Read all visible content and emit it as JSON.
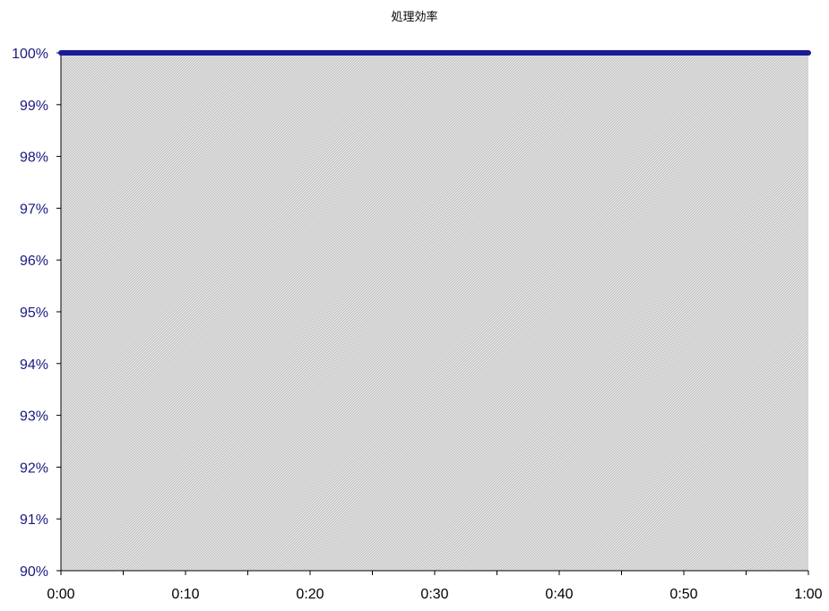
{
  "chart_data": {
    "type": "line",
    "title": "処理効率",
    "xlabel": "",
    "ylabel": "",
    "x_ticks": [
      "0:00",
      "0:10",
      "0:20",
      "0:30",
      "0:40",
      "0:50",
      "1:00"
    ],
    "y_ticks": [
      "90%",
      "91%",
      "92%",
      "93%",
      "94%",
      "95%",
      "96%",
      "97%",
      "98%",
      "99%",
      "100%"
    ],
    "xlim_minutes": [
      0,
      60
    ],
    "ylim_percent": [
      90,
      100
    ],
    "grid": false,
    "series": [
      {
        "color": "#1a1a9a",
        "x_minutes": [
          0,
          5,
          10,
          15,
          20,
          25,
          30,
          35,
          40,
          45,
          50,
          55,
          60
        ],
        "y_percent": [
          100,
          100,
          100,
          100,
          100,
          100,
          100,
          100,
          100,
          100,
          100,
          100,
          100
        ]
      }
    ],
    "plot_background": "hatched gray",
    "axis_label_color": "#1a1a80"
  }
}
